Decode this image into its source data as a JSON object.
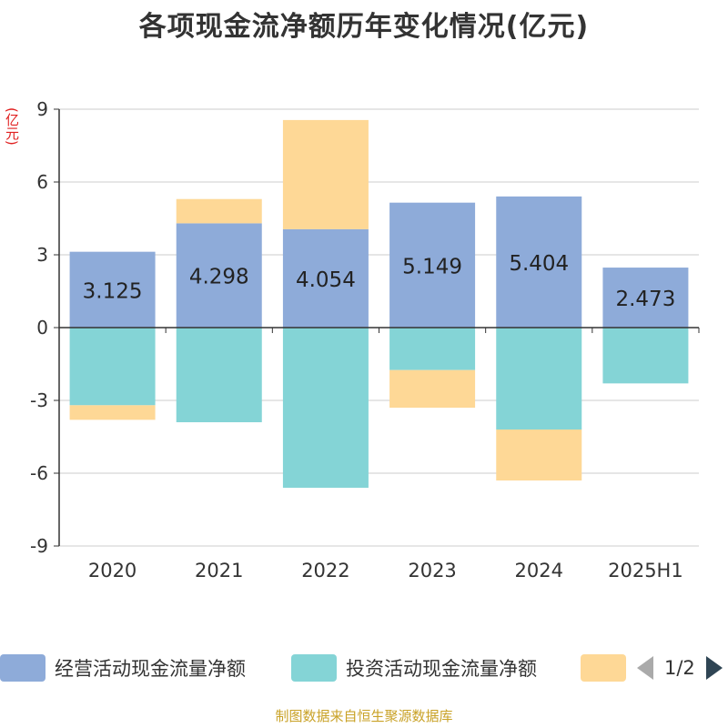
{
  "chart_data": {
    "type": "bar",
    "stacked": true,
    "title": "各项现金流净额历年变化情况(亿元)",
    "ylabel": "(亿元)",
    "categories": [
      "2020",
      "2021",
      "2022",
      "2023",
      "2024",
      "2025H1"
    ],
    "yticks": [
      "9",
      "6",
      "3",
      "0",
      "-3",
      "-6",
      "-9"
    ],
    "ylim": [
      -9,
      9
    ],
    "grid": true,
    "series": [
      {
        "name": "经营活动现金流量净额",
        "color": "#8eabd9",
        "values": [
          3.125,
          4.298,
          4.054,
          5.149,
          5.404,
          2.473
        ]
      },
      {
        "name": "投资活动现金流量净额",
        "color": "#84d4d6",
        "values": [
          -3.2,
          -3.9,
          -6.6,
          -1.75,
          -4.2,
          -2.3
        ]
      },
      {
        "name": "",
        "color": "#fed896",
        "values": [
          -0.6,
          1.0,
          4.5,
          -1.55,
          -2.1,
          0
        ]
      }
    ],
    "data_labels": [
      "3.125",
      "4.298",
      "4.054",
      "5.149",
      "5.404",
      "2.473"
    ]
  },
  "legend": {
    "item1": "经营活动现金流量净额",
    "item2": "投资活动现金流量净额",
    "pager": "1/2"
  },
  "source": "制图数据来自恒生聚源数据库"
}
